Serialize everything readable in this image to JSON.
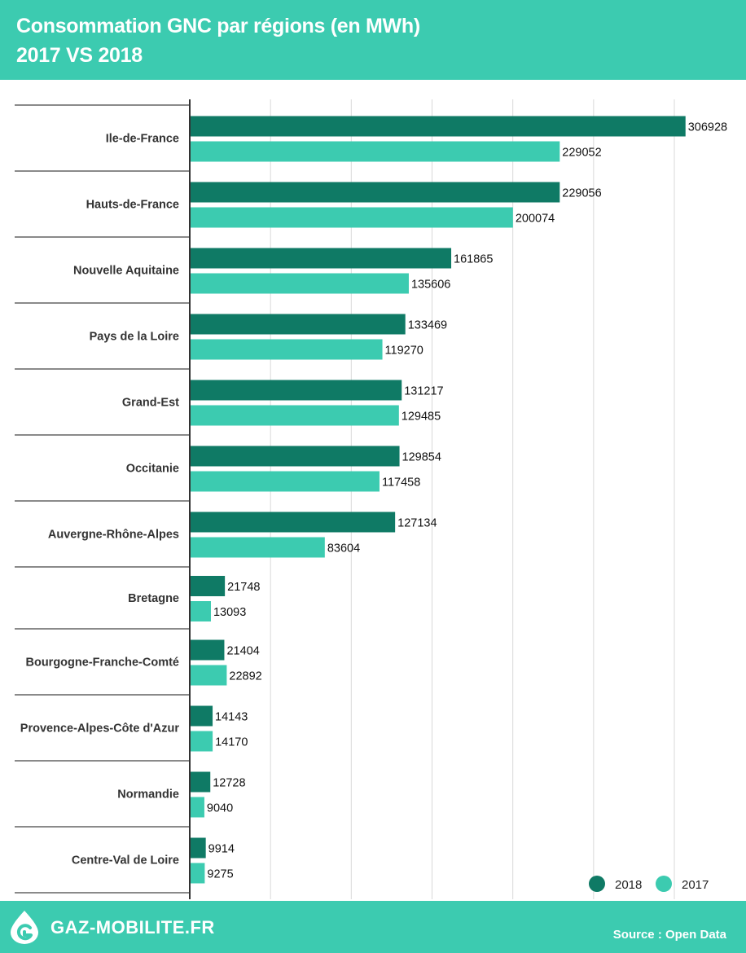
{
  "header": {
    "title_line1": "Consommation GNC par régions (en MWh)",
    "title_line2": "2017 VS 2018",
    "background": "#3ccbb0"
  },
  "footer": {
    "brand": "GAZ-MOBILITE.FR",
    "source": "Source : Open Data",
    "background": "#3ccbb0"
  },
  "chart_data": {
    "type": "bar",
    "orientation": "horizontal",
    "categories": [
      "Ile-de-France",
      "Hauts-de-France",
      "Nouvelle Aquitaine",
      "Pays de la Loire",
      "Grand-Est",
      "Occitanie",
      "Auvergne-Rhône-Alpes",
      "Bretagne",
      "Bourgogne-Franche-Comté",
      "Provence-Alpes-Côte d'Azur",
      "Normandie",
      "Centre-Val de Loire"
    ],
    "series": [
      {
        "name": "2018",
        "color": "#0f7a65",
        "values": [
          306928,
          229056,
          161865,
          133469,
          131217,
          129854,
          127134,
          21748,
          21404,
          14143,
          12728,
          9914
        ]
      },
      {
        "name": "2017",
        "color": "#3ccbb0",
        "values": [
          229052,
          200074,
          135606,
          119270,
          129485,
          117458,
          83604,
          13093,
          22892,
          14170,
          9040,
          9275
        ]
      }
    ],
    "xlim": [
      0,
      310000
    ],
    "grid": true,
    "legend_position": "bottom-right"
  }
}
